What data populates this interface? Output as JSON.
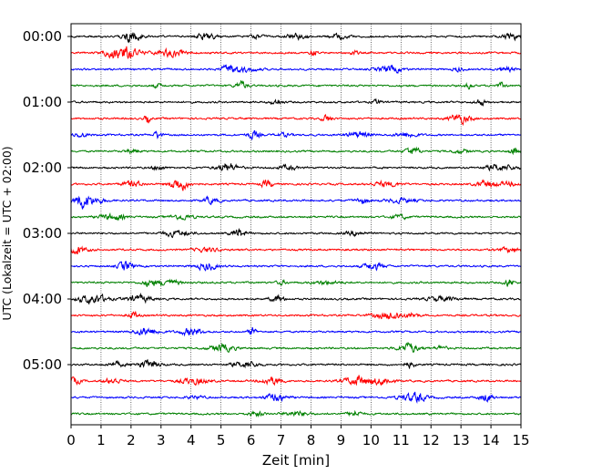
{
  "chart_data": {
    "type": "line",
    "title": "",
    "xlabel": "Zeit  [min]",
    "ylabel": "UTC (Lokalzeit = UTC + 02:00)",
    "xlim": [
      0,
      15
    ],
    "x_ticks": [
      "0",
      "1",
      "2",
      "3",
      "4",
      "5",
      "6",
      "7",
      "8",
      "9",
      "10",
      "11",
      "12",
      "13",
      "14",
      "15"
    ],
    "y_tick_labels": [
      "00:00",
      "01:00",
      "02:00",
      "03:00",
      "04:00",
      "05:00"
    ],
    "rows_per_hour": 4,
    "row_count": 24,
    "row_colors": [
      "#000000",
      "#ff0000",
      "#0000ff",
      "#008000"
    ],
    "vertical_grid": true,
    "grid_style": "dotted",
    "legend": "none"
  }
}
